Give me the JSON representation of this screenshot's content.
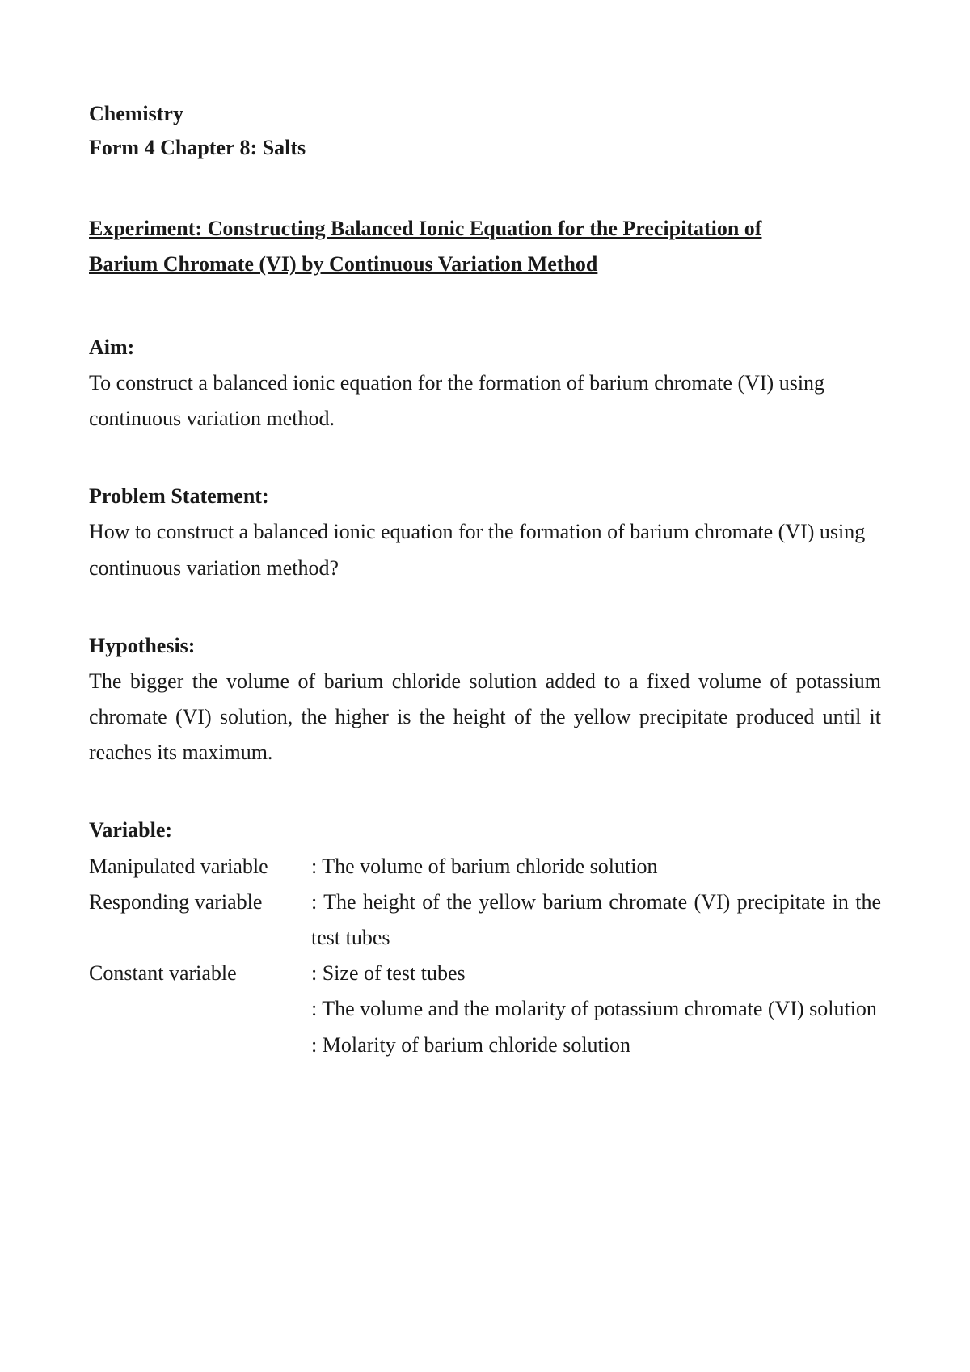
{
  "header": {
    "subject": "Chemistry",
    "chapter": "Form 4 Chapter 8: Salts"
  },
  "experiment": {
    "title_line1": "Experiment: Constructing Balanced Ionic Equation for the Precipitation of",
    "title_line2": "Barium Chromate (VI) by Continuous Variation Method"
  },
  "sections": {
    "aim": {
      "heading": "Aim:",
      "text": "To construct a balanced ionic equation for the formation of barium chromate (VI) using continuous variation method."
    },
    "problem_statement": {
      "heading": "Problem Statement:",
      "text": "How to construct a balanced ionic equation for the formation of barium chromate (VI) using continuous variation method?"
    },
    "hypothesis": {
      "heading": "Hypothesis:",
      "text": "The bigger the volume of barium chloride solution added to a fixed volume of potassium chromate (VI) solution, the higher is the height of the yellow precipitate produced until it reaches its maximum."
    },
    "variable": {
      "heading": "Variable:",
      "manipulated": {
        "label": "Manipulated variable",
        "value": ": The volume of barium chloride solution"
      },
      "responding": {
        "label": "Responding variable",
        "value": ": The height of the yellow barium chromate (VI) precipitate in the test tubes"
      },
      "constant": {
        "label": "Constant variable",
        "value1": ": Size of test tubes",
        "value2": ": The volume and the molarity of potassium chromate (VI) solution",
        "value3": ": Molarity of barium chloride solution"
      }
    }
  }
}
